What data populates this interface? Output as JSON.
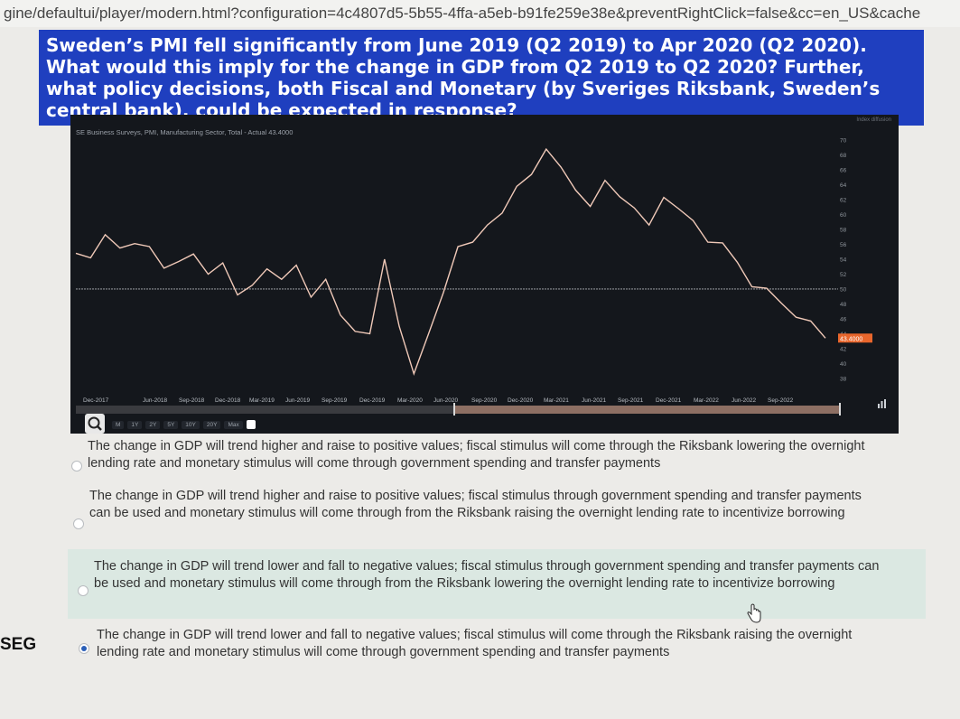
{
  "browser": {
    "url": "gine/defaultui/player/modern.html?configuration=4c4807d5-5b55-4ffa-a5eb-b91fe259e38e&preventRightClick=false&cc=en_US&cache"
  },
  "question": {
    "text": "Sweden’s PMI fell significantly from June 2019 (Q2 2019) to Apr 2020 (Q2 2020). What would this imply for the change in GDP from Q2 2019 to Q2 2020? Further, what policy decisions, both Fiscal and Monetary (by Sveriges Riksbank, Sweden’s central bank), could be expected in response?"
  },
  "chart": {
    "title": "SE Business Surveys, PMI, Manufacturing Sector, Total - Actual 43.4000",
    "unit_label": "Index diffusion",
    "last_value_label": "43.4000",
    "toolbar": [
      "M",
      "1Y",
      "2Y",
      "5Y",
      "10Y",
      "20Y",
      "Max"
    ],
    "line_color": "#f0c9b8",
    "reference_line_color": "#8c8f94",
    "last_value_badge_color": "#e9662c"
  },
  "chart_data": {
    "type": "line",
    "x_ticks": [
      "Dec-2017",
      "Jun-2018",
      "Sep-2018",
      "Dec-2018",
      "Mar-2019",
      "Jun-2019",
      "Sep-2019",
      "Dec-2019",
      "Mar-2020",
      "Jun-2020",
      "Sep-2020",
      "Dec-2020",
      "Mar-2021",
      "Jun-2021",
      "Sep-2021",
      "Dec-2021",
      "Mar-2022",
      "Jun-2022",
      "Sep-2022"
    ],
    "y_ticks": [
      38,
      40,
      42,
      44,
      46,
      48,
      50,
      52,
      54,
      56,
      58,
      60,
      62,
      64,
      66,
      68,
      70
    ],
    "ylim": [
      37,
      71
    ],
    "reference_value": 50,
    "values": [
      54.8,
      54.2,
      57.3,
      55.5,
      56.1,
      55.7,
      52.8,
      53.7,
      54.7,
      52.0,
      53.5,
      49.2,
      50.5,
      52.7,
      51.3,
      53.2,
      48.9,
      51.3,
      46.5,
      44.3,
      44.0,
      54.0,
      45.0,
      38.6,
      44.0,
      49.5,
      55.7,
      56.3,
      58.6,
      60.2,
      63.8,
      65.4,
      68.8,
      66.4,
      63.3,
      61.1,
      64.6,
      62.4,
      60.9,
      58.6,
      62.3,
      60.8,
      59.2,
      56.3,
      56.2,
      53.6,
      50.3,
      50.1,
      48.1,
      46.2,
      45.7,
      43.4
    ],
    "grid": false
  },
  "options": [
    {
      "text": "The change in GDP will trend higher and raise to positive values; fiscal stimulus will come through the Riksbank lowering the overnight lending rate and monetary stimulus will come through government spending and transfer payments",
      "selected": false,
      "highlighted": false
    },
    {
      "text": "The change in GDP will trend higher and raise to positive values; fiscal stimulus through government spending and transfer payments can be used and monetary stimulus will come through from the Riksbank raising the overnight lending rate to incentivize borrowing",
      "selected": false,
      "highlighted": false
    },
    {
      "text": "The change in GDP will trend lower and fall to negative values; fiscal stimulus through government spending and transfer payments can be used and monetary stimulus will come through from the Riksbank lowering the overnight lending rate to incentivize borrowing",
      "selected": false,
      "highlighted": true
    },
    {
      "text": "The change in GDP will trend lower and fall to negative values; fiscal stimulus will come through the Riksbank raising the overnight lending rate and monetary stimulus will come through government spending and transfer payments",
      "selected": true,
      "highlighted": false
    }
  ],
  "side_label": "SEG"
}
